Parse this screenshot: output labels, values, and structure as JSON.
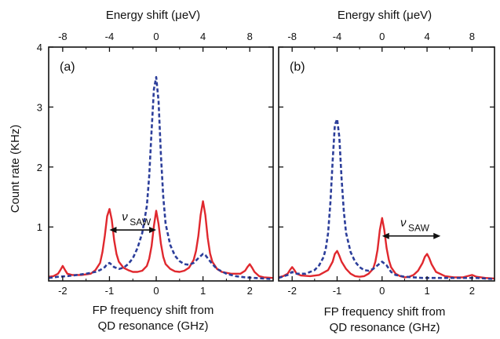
{
  "figure": {
    "ylabel": "Count rate (KHz)",
    "xlabel_bottom_line1": "FP frequency shift from",
    "xlabel_bottom_line2": "QD resonance (GHz)",
    "xlabel_top": "Energy shift (μeV)"
  },
  "chart_data": [
    {
      "type": "line",
      "panel_label": "(a)",
      "xlim": [
        -2.3,
        2.5
      ],
      "ylim": [
        0.1,
        4.0
      ],
      "x_ticks": [
        -2,
        -1,
        0,
        1,
        2
      ],
      "y_ticks": [
        1,
        2,
        3,
        4
      ],
      "top_axis_ticks": [
        -8,
        -4,
        0,
        4,
        8
      ],
      "grid": false,
      "colors": {
        "solid": "#e0282e",
        "dashed": "#2c3e9a"
      },
      "annotation": {
        "symbol": "ν",
        "subscript": "SAW",
        "arrow_from": -1.0,
        "arrow_to": 0.0,
        "arrow_y": 0.95
      },
      "series": [
        {
          "style": "solid",
          "x": [
            -2.3,
            -2.2,
            -2.1,
            -2.05,
            -2.0,
            -1.95,
            -1.9,
            -1.8,
            -1.6,
            -1.4,
            -1.3,
            -1.2,
            -1.15,
            -1.1,
            -1.05,
            -1.0,
            -0.95,
            -0.9,
            -0.85,
            -0.8,
            -0.7,
            -0.6,
            -0.5,
            -0.4,
            -0.3,
            -0.2,
            -0.15,
            -0.1,
            -0.05,
            0.0,
            0.05,
            0.1,
            0.15,
            0.2,
            0.3,
            0.4,
            0.5,
            0.6,
            0.7,
            0.8,
            0.85,
            0.9,
            0.95,
            1.0,
            1.05,
            1.1,
            1.15,
            1.2,
            1.3,
            1.4,
            1.6,
            1.8,
            1.9,
            1.95,
            2.0,
            2.05,
            2.1,
            2.2,
            2.3,
            2.5
          ],
          "y": [
            0.17,
            0.18,
            0.22,
            0.28,
            0.35,
            0.28,
            0.22,
            0.2,
            0.2,
            0.22,
            0.28,
            0.4,
            0.58,
            0.85,
            1.18,
            1.3,
            1.12,
            0.78,
            0.55,
            0.42,
            0.32,
            0.28,
            0.25,
            0.25,
            0.27,
            0.35,
            0.47,
            0.68,
            1.02,
            1.27,
            1.05,
            0.72,
            0.5,
            0.38,
            0.3,
            0.26,
            0.25,
            0.27,
            0.32,
            0.45,
            0.6,
            0.85,
            1.2,
            1.43,
            1.2,
            0.82,
            0.56,
            0.42,
            0.3,
            0.25,
            0.22,
            0.22,
            0.27,
            0.33,
            0.38,
            0.32,
            0.25,
            0.18,
            0.16,
            0.15
          ]
        },
        {
          "style": "dashed",
          "x": [
            -2.3,
            -2.1,
            -1.9,
            -1.7,
            -1.5,
            -1.3,
            -1.2,
            -1.1,
            -1.05,
            -1.0,
            -0.95,
            -0.9,
            -0.8,
            -0.7,
            -0.6,
            -0.5,
            -0.4,
            -0.3,
            -0.2,
            -0.15,
            -0.1,
            -0.05,
            0.0,
            0.05,
            0.1,
            0.15,
            0.2,
            0.3,
            0.4,
            0.5,
            0.6,
            0.7,
            0.8,
            0.9,
            1.0,
            1.05,
            1.1,
            1.2,
            1.3,
            1.5,
            1.7,
            1.9,
            2.1,
            2.3,
            2.5
          ],
          "y": [
            0.15,
            0.17,
            0.18,
            0.2,
            0.22,
            0.25,
            0.28,
            0.33,
            0.38,
            0.4,
            0.37,
            0.33,
            0.3,
            0.32,
            0.38,
            0.48,
            0.65,
            0.9,
            1.35,
            1.85,
            2.6,
            3.3,
            3.5,
            3.1,
            2.2,
            1.5,
            1.05,
            0.7,
            0.52,
            0.43,
            0.38,
            0.37,
            0.4,
            0.48,
            0.55,
            0.53,
            0.48,
            0.38,
            0.3,
            0.22,
            0.18,
            0.16,
            0.15,
            0.14,
            0.13
          ]
        }
      ]
    },
    {
      "type": "line",
      "panel_label": "(b)",
      "xlim": [
        -2.3,
        2.5
      ],
      "ylim": [
        0.1,
        4.0
      ],
      "x_ticks": [
        -2,
        -1,
        0,
        1,
        2
      ],
      "top_axis_ticks": [
        -8,
        -4,
        0,
        4,
        8
      ],
      "grid": false,
      "colors": {
        "solid": "#e0282e",
        "dashed": "#2c3e9a"
      },
      "annotation": {
        "symbol": "ν",
        "subscript": "SAW",
        "arrow_from": 0.0,
        "arrow_to": 1.3,
        "arrow_y": 0.85
      },
      "series": [
        {
          "style": "solid",
          "x": [
            -2.3,
            -2.2,
            -2.1,
            -2.05,
            -2.0,
            -1.95,
            -1.9,
            -1.8,
            -1.6,
            -1.4,
            -1.2,
            -1.1,
            -1.05,
            -1.0,
            -0.95,
            -0.9,
            -0.8,
            -0.7,
            -0.6,
            -0.5,
            -0.4,
            -0.3,
            -0.2,
            -0.15,
            -0.1,
            -0.05,
            0.0,
            0.05,
            0.1,
            0.15,
            0.2,
            0.3,
            0.4,
            0.5,
            0.6,
            0.7,
            0.8,
            0.9,
            0.95,
            1.0,
            1.05,
            1.1,
            1.2,
            1.4,
            1.6,
            1.8,
            1.9,
            2.0,
            2.1,
            2.3,
            2.5
          ],
          "y": [
            0.16,
            0.18,
            0.22,
            0.28,
            0.33,
            0.28,
            0.22,
            0.19,
            0.18,
            0.2,
            0.28,
            0.42,
            0.55,
            0.6,
            0.52,
            0.42,
            0.3,
            0.22,
            0.18,
            0.17,
            0.18,
            0.22,
            0.3,
            0.42,
            0.62,
            0.95,
            1.15,
            0.95,
            0.65,
            0.45,
            0.33,
            0.22,
            0.18,
            0.16,
            0.17,
            0.2,
            0.27,
            0.4,
            0.5,
            0.55,
            0.48,
            0.38,
            0.25,
            0.18,
            0.16,
            0.16,
            0.18,
            0.2,
            0.17,
            0.15,
            0.14
          ]
        },
        {
          "style": "dashed",
          "x": [
            -2.3,
            -2.1,
            -2.0,
            -1.9,
            -1.7,
            -1.5,
            -1.4,
            -1.3,
            -1.25,
            -1.2,
            -1.15,
            -1.1,
            -1.05,
            -1.0,
            -0.95,
            -0.9,
            -0.85,
            -0.8,
            -0.7,
            -0.6,
            -0.5,
            -0.4,
            -0.3,
            -0.2,
            -0.1,
            0.0,
            0.1,
            0.2,
            0.3,
            0.5,
            0.7,
            0.9,
            1.1,
            1.3,
            1.5,
            1.7,
            1.9,
            2.1,
            2.3,
            2.5
          ],
          "y": [
            0.15,
            0.2,
            0.25,
            0.22,
            0.22,
            0.28,
            0.36,
            0.5,
            0.65,
            0.9,
            1.4,
            2.1,
            2.7,
            2.8,
            2.5,
            1.8,
            1.25,
            0.9,
            0.58,
            0.42,
            0.33,
            0.28,
            0.27,
            0.3,
            0.36,
            0.42,
            0.36,
            0.25,
            0.2,
            0.17,
            0.16,
            0.15,
            0.15,
            0.15,
            0.15,
            0.15,
            0.15,
            0.15,
            0.14,
            0.13
          ]
        }
      ]
    }
  ]
}
